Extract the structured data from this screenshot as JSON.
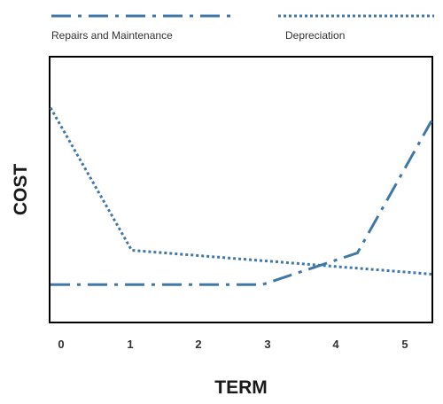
{
  "chart_data": {
    "type": "line",
    "title": "",
    "xlabel": "TERM",
    "ylabel": "COST",
    "xlim": [
      0,
      5.4
    ],
    "ylim": [
      0,
      100
    ],
    "x_ticks": [
      "0",
      "1",
      "2",
      "3",
      "4",
      "5"
    ],
    "grid": false,
    "legend_position": "top",
    "series": [
      {
        "name": "Repairs and Maintenance",
        "style": "dash-dot",
        "color": "#3f78a8",
        "points": [
          [
            0,
            14
          ],
          [
            3,
            14
          ],
          [
            4.35,
            26
          ],
          [
            5.4,
            76
          ]
        ]
      },
      {
        "name": "Depreciation",
        "style": "dotted",
        "color": "#3f78a8",
        "points": [
          [
            0,
            81
          ],
          [
            1.15,
            27
          ],
          [
            5.4,
            18
          ]
        ]
      }
    ]
  }
}
